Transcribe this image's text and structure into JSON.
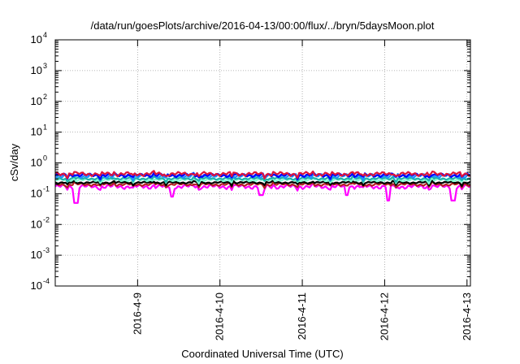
{
  "chart_data": {
    "type": "line",
    "title": "/data/run/goesPlots/archive/2016-04-13/00:00/flux/../bryn/5daysMoon.plot",
    "xlabel": "Coordinated Universal Time (UTC)",
    "ylabel": "cSv/day",
    "yscale": "log",
    "ylim": [
      0.0001,
      10000
    ],
    "xlim": [
      "2016-04-08",
      "2016-04-13"
    ],
    "grid": true,
    "legend": "none",
    "x_ticks": [
      "2016-4-9",
      "2016-4-10",
      "2016-4-11",
      "2016-4-12",
      "2016-4-13"
    ],
    "y_ticks": [
      {
        "base": "10",
        "exp": "-4",
        "value": 0.0001
      },
      {
        "base": "10",
        "exp": "-3",
        "value": 0.001
      },
      {
        "base": "10",
        "exp": "-2",
        "value": 0.01
      },
      {
        "base": "10",
        "exp": "-1",
        "value": 0.1
      },
      {
        "base": "10",
        "exp": "0",
        "value": 1
      },
      {
        "base": "10",
        "exp": "1",
        "value": 10
      },
      {
        "base": "10",
        "exp": "2",
        "value": 100
      },
      {
        "base": "10",
        "exp": "3",
        "value": 1000
      },
      {
        "base": "10",
        "exp": "4",
        "value": 10000
      }
    ],
    "series": [
      {
        "color": "#ff00ff",
        "baseline": 0.17,
        "amplitude": 0.05,
        "dips": [
          {
            "x": "2016-04-08 06:00",
            "y": 0.05
          },
          {
            "x": "2016-04-09 10:00",
            "y": 0.08
          },
          {
            "x": "2016-04-10 12:00",
            "y": 0.09
          },
          {
            "x": "2016-04-11 13:00",
            "y": 0.09
          },
          {
            "x": "2016-04-12 01:00",
            "y": 0.06
          },
          {
            "x": "2016-04-12 20:00",
            "y": 0.06
          }
        ]
      },
      {
        "color": "#b22222",
        "baseline": 0.2,
        "amplitude": 0.04,
        "dips": []
      },
      {
        "color": "#000000",
        "baseline": 0.23,
        "amplitude": 0.03,
        "dips": []
      },
      {
        "color": "#7fffd4",
        "baseline": 0.28,
        "amplitude": 0.05,
        "dips": []
      },
      {
        "color": "#20b2aa",
        "baseline": 0.31,
        "amplitude": 0.05,
        "dips": []
      },
      {
        "color": "#1e90ff",
        "baseline": 0.38,
        "amplitude": 0.1,
        "dips": []
      },
      {
        "color": "#0000ff",
        "baseline": 0.4,
        "amplitude": 0.1,
        "dips": []
      },
      {
        "color": "#dc143c",
        "baseline": 0.44,
        "amplitude": 0.12,
        "dips": []
      }
    ]
  }
}
